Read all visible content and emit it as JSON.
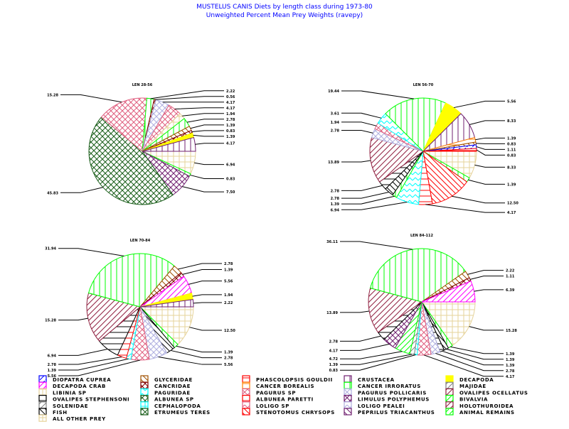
{
  "chart_data": {
    "type": "pie",
    "title": "MUSTELUS CANIS Diets by length class during 1973-80",
    "subtitle": "Unweighted Percent Mean Prey Weights (ravepy)",
    "legend": [
      {
        "id": "diopatra",
        "label": "DIOPATRA CUPREA",
        "color": "#0000ff",
        "pattern": "corner"
      },
      {
        "id": "decapoda_crab",
        "label": "DECAPODA CRAB",
        "color": "#ff00ff",
        "pattern": "diag"
      },
      {
        "id": "libinia",
        "label": "LIBINIA SP",
        "color": "#e6d39a",
        "pattern": "grid"
      },
      {
        "id": "ovalipes_steph",
        "label": "OVALIPES STEPHENSONI",
        "color": "#000000",
        "pattern": "hline"
      },
      {
        "id": "solenidae",
        "label": "SOLENIDAE",
        "color": "#808080",
        "pattern": "diag"
      },
      {
        "id": "fish",
        "label": "FISH",
        "color": "#000000",
        "pattern": "bdiag"
      },
      {
        "id": "all_other",
        "label": "ALL OTHER PREY",
        "color": "#e6d39a",
        "pattern": "grid"
      },
      {
        "id": "glyceridae",
        "label": "GLYCERIDAE",
        "color": "#a05000",
        "pattern": "bdiag"
      },
      {
        "id": "cancridae",
        "label": "CANCRIDAE",
        "color": "#800000",
        "pattern": "cross"
      },
      {
        "id": "paguridae",
        "label": "PAGURIDAE",
        "color": "#00ffff",
        "pattern": "wave"
      },
      {
        "id": "albunea_sp",
        "label": "ALBUNEA SP",
        "color": "#1a5e1a",
        "pattern": "cross"
      },
      {
        "id": "cephalopoda",
        "label": "CEPHALOPODA",
        "color": "#00ffff",
        "pattern": "grid"
      },
      {
        "id": "etrumeus",
        "label": "ETRUMEUS TERES",
        "color": "#1a5e1a",
        "pattern": "cross"
      },
      {
        "id": "phascolopsis",
        "label": "PHASCOLOPSIS GOULDII",
        "color": "#ff0000",
        "pattern": "hline"
      },
      {
        "id": "cancer_borealis",
        "label": "CANCER BOREALIS",
        "color": "#ff8000",
        "pattern": "hline"
      },
      {
        "id": "pagurus_sp",
        "label": "PAGURUS SP",
        "color": "#e06080",
        "pattern": "cross"
      },
      {
        "id": "albunea_paretti",
        "label": "ALBUNEA PARETTI",
        "color": "#ff0000",
        "pattern": "hline"
      },
      {
        "id": "loligo_sp",
        "label": "LOLIGO SP",
        "color": "#e06080",
        "pattern": "wave"
      },
      {
        "id": "stenotomus",
        "label": "STENOTOMUS CHRYSOPS",
        "color": "#ff0000",
        "pattern": "bdiag"
      },
      {
        "id": "crustacea",
        "label": "CRUSTACEA",
        "color": "#702070",
        "pattern": "vline"
      },
      {
        "id": "cancer_irroratus",
        "label": "CANCER IRRORATUS",
        "color": "#00ff00",
        "pattern": "vline"
      },
      {
        "id": "pagurus_pollicaris",
        "label": "PAGURUS POLLICARIS",
        "color": "#b0b0e0",
        "pattern": "cross"
      },
      {
        "id": "limulus",
        "label": "LIMULUS POLYPHEMUS",
        "color": "#702070",
        "pattern": "cross"
      },
      {
        "id": "loligo_pealei",
        "label": "LOLIGO PEALEI",
        "color": "#b0b0e0",
        "pattern": "wave"
      },
      {
        "id": "peprilus",
        "label": "PEPRILUS TRIACANTHUS",
        "color": "#702070",
        "pattern": "bdiag"
      },
      {
        "id": "decapoda",
        "label": "DECAPODA",
        "color": "#ffff00",
        "pattern": "solid"
      },
      {
        "id": "majidae",
        "label": "MAJIDAE",
        "color": "#808080",
        "pattern": "diag"
      },
      {
        "id": "ovalipes_ocellatus",
        "label": "OVALIPES OCELLATUS",
        "color": "#902040",
        "pattern": "diag"
      },
      {
        "id": "bivalvia",
        "label": "BIVALVIA",
        "color": "#00ff00",
        "pattern": "diag"
      },
      {
        "id": "holothuroidea",
        "label": "HOLOTHUROIDEA",
        "color": "#902040",
        "pattern": "diag"
      },
      {
        "id": "animal_remains",
        "label": "ANIMAL REMAINS",
        "color": "#00ff00",
        "pattern": "corner"
      }
    ],
    "pies": [
      {
        "title": "LEN 28-56",
        "slices": [
          [
            "all_other",
            6.94
          ],
          [
            "cancer_irroratus",
            0.83
          ],
          [
            "limulus",
            7.5
          ],
          [
            "etrumeus",
            45.83
          ],
          [
            "pagurus_sp",
            15.28
          ],
          [
            "cancer_irroratus",
            2.22
          ],
          [
            "cancridae",
            0.56
          ],
          [
            "pagurus_pollicaris",
            4.17
          ],
          [
            "pagurus_sp",
            4.17
          ],
          [
            "libinia",
            1.94
          ],
          [
            "cancer_irroratus",
            2.78
          ],
          [
            "glyceridae",
            1.39
          ],
          [
            "cancridae",
            0.83
          ],
          [
            "decapoda",
            1.39
          ],
          [
            "crustacea",
            4.17
          ]
        ]
      },
      {
        "title": "LEN 56-70",
        "slices": [
          [
            "all_other",
            8.33
          ],
          [
            "cancer_irroratus",
            1.39
          ],
          [
            "stenotomus",
            12.5
          ],
          [
            "albunea_paretti",
            4.17
          ],
          [
            "paguridae",
            6.94
          ],
          [
            "cancer_irroratus",
            1.39
          ],
          [
            "fish",
            2.78
          ],
          [
            "ovalipes_steph",
            2.78
          ],
          [
            "holothuroidea",
            13.89
          ],
          [
            "pagurus_pollicaris",
            2.78
          ],
          [
            "pagurus_sp",
            1.94
          ],
          [
            "paguridae",
            3.61
          ],
          [
            "cancer_irroratus",
            19.44
          ],
          [
            "decapoda",
            5.56
          ],
          [
            "crustacea",
            8.33
          ],
          [
            "cancer_borealis",
            1.39
          ],
          [
            "glyceridae",
            0.83
          ],
          [
            "diopatra",
            1.11
          ],
          [
            "phascolopsis",
            0.83
          ]
        ]
      },
      {
        "title": "LEN 70-84",
        "slices": [
          [
            "all_other",
            12.5
          ],
          [
            "cancer_irroratus",
            1.39
          ],
          [
            "fish",
            2.78
          ],
          [
            "pagurus_pollicaris",
            5.56
          ],
          [
            "pagurus_sp",
            5.56
          ],
          [
            "paguridae",
            1.39
          ],
          [
            "phascolopsis",
            2.78
          ],
          [
            "ovalipes_steph",
            6.94
          ],
          [
            "holothuroidea",
            15.28
          ],
          [
            "cancer_irroratus",
            31.94
          ],
          [
            "glyceridae",
            2.78
          ],
          [
            "cancridae",
            1.39
          ],
          [
            "decapoda_crab",
            5.56
          ],
          [
            "decapoda",
            1.94
          ],
          [
            "crustacea",
            2.22
          ]
        ]
      },
      {
        "title": "LEN 84-112",
        "slices": [
          [
            "all_other",
            15.28
          ],
          [
            "cancer_irroratus",
            1.39
          ],
          [
            "fish",
            1.39
          ],
          [
            "ovalipes_steph",
            1.39
          ],
          [
            "pagurus_pollicaris",
            2.78
          ],
          [
            "pagurus_sp",
            4.17
          ],
          [
            "paguridae",
            0.83
          ],
          [
            "solenidae",
            1.39
          ],
          [
            "bivalvia",
            4.72
          ],
          [
            "limulus",
            4.17
          ],
          [
            "ovalipes_steph",
            2.78
          ],
          [
            "holothuroidea",
            13.89
          ],
          [
            "cancer_irroratus",
            36.11
          ],
          [
            "glyceridae",
            2.22
          ],
          [
            "cancridae",
            1.11
          ],
          [
            "decapoda_crab",
            6.39
          ]
        ]
      }
    ]
  }
}
